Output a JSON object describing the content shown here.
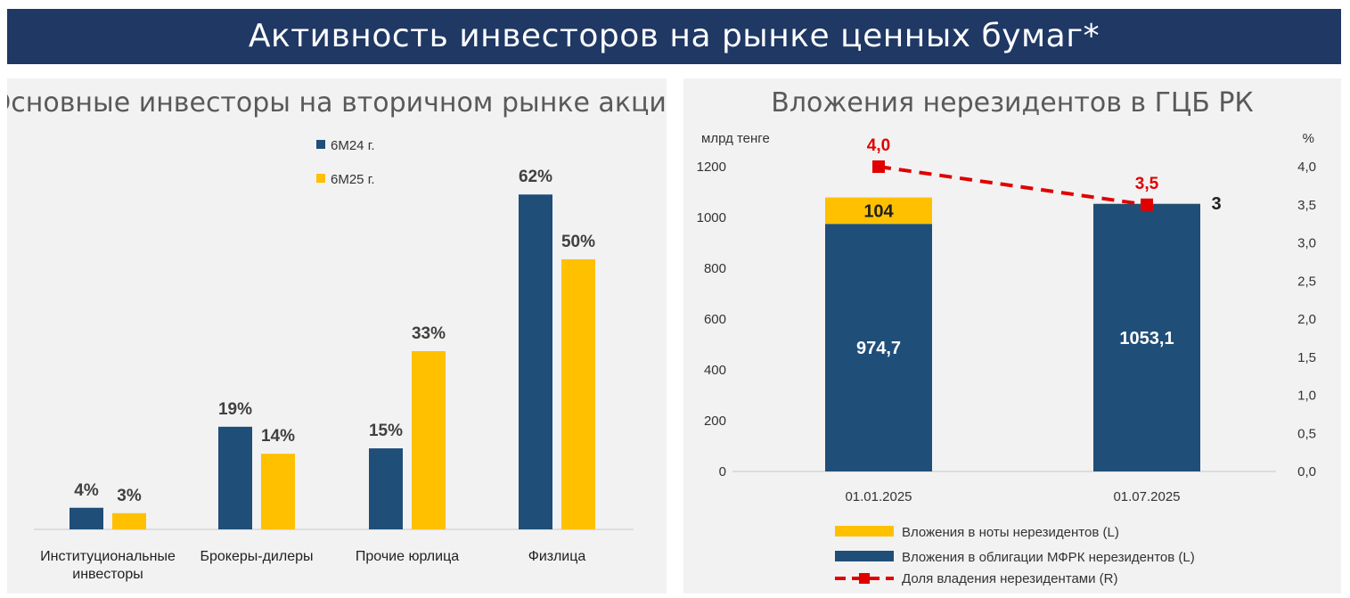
{
  "header": {
    "title": "Активность инвесторов на рынке ценных бумаг*"
  },
  "colors": {
    "navy": "#1f4e79",
    "gold": "#ffc000",
    "red": "#e00000",
    "banner": "#1f3864"
  },
  "chart_data": [
    {
      "type": "bar",
      "title": "Основные инвесторы на вторичном рынке акций",
      "categories": [
        [
          "Институциональные",
          "инвесторы"
        ],
        [
          "Брокеры-дилеры"
        ],
        [
          "Прочие юрлица"
        ],
        [
          "Физлица"
        ]
      ],
      "series": [
        {
          "name": "6М24 г.",
          "values": [
            4,
            19,
            15,
            62
          ],
          "labels": [
            "4%",
            "19%",
            "15%",
            "62%"
          ]
        },
        {
          "name": "6М25 г.",
          "values": [
            3,
            14,
            33,
            50
          ],
          "labels": [
            "3%",
            "14%",
            "33%",
            "50%"
          ]
        }
      ],
      "ylim": [
        0,
        66
      ],
      "legend_position": "top-center"
    },
    {
      "type": "bar",
      "stacked": true,
      "title": "Вложения нерезидентов в ГЦБ РК",
      "ylabel": "млрд тенге",
      "y2label": "%",
      "categories": [
        "01.01.2025",
        "01.07.2025"
      ],
      "ylim": [
        0,
        1200
      ],
      "yticks": [
        "0",
        "200",
        "400",
        "600",
        "800",
        "1000",
        "1200"
      ],
      "y2lim": [
        0,
        4
      ],
      "y2ticks": [
        "0,0",
        "0,5",
        "1,0",
        "1,5",
        "2,0",
        "2,5",
        "3,0",
        "3,5",
        "4,0"
      ],
      "series": [
        {
          "name": "Вложения в облигации МФРК нерезидентов (L)",
          "values": [
            974.7,
            1053.1
          ],
          "labels": [
            "974,7",
            "1053,1"
          ]
        },
        {
          "name": "Вложения в ноты нерезидентов (L)",
          "values": [
            104,
            3
          ],
          "labels": [
            "104",
            "3"
          ]
        },
        {
          "name": "Доля владения нерезидентами (R)",
          "axis": "right",
          "type": "line",
          "values": [
            4.0,
            3.5
          ],
          "labels": [
            "4,0",
            "3,5"
          ]
        }
      ],
      "legend_position": "bottom"
    }
  ]
}
